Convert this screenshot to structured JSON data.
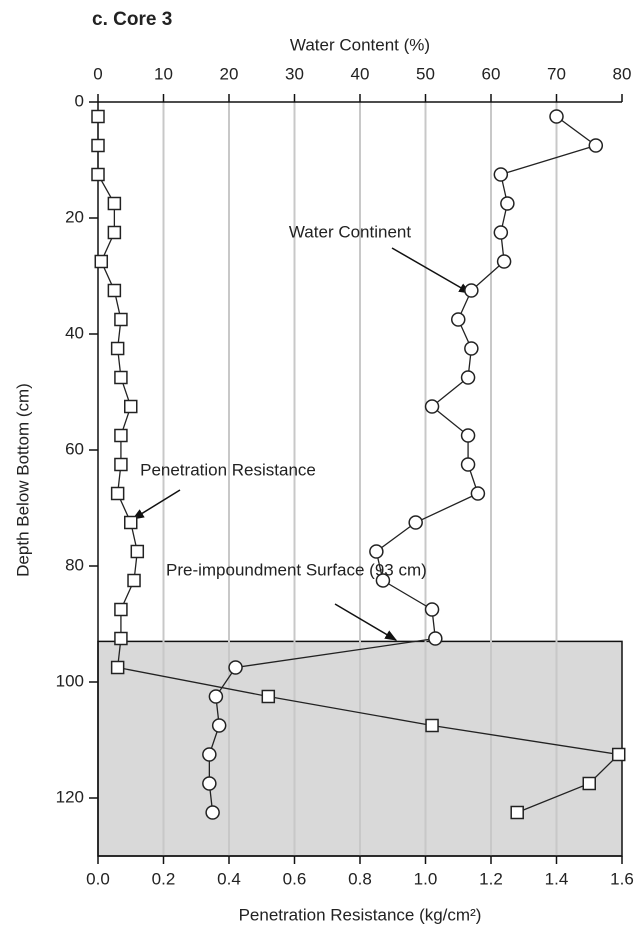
{
  "chart_data": {
    "type": "profile",
    "title": "c. Core 3",
    "x_label": "Penetration Resistance (kg/cm²)",
    "x2_label": "Water Content (%)",
    "y_label": "Depth Below Bottom (cm)",
    "xlim": [
      0,
      1.6
    ],
    "xticks": [
      {
        "value": 0,
        "label": "0.0"
      },
      0.2,
      0.4,
      0.6,
      0.8,
      {
        "value": 1,
        "label": "1.0"
      },
      1.2,
      1.4,
      1.6
    ],
    "x2lim": [
      0,
      80
    ],
    "x2ticks": [
      0,
      10,
      20,
      30,
      40,
      50,
      60,
      70,
      80
    ],
    "ylim": [
      0,
      130
    ],
    "yticks": [
      0,
      20,
      40,
      60,
      80,
      100,
      120
    ],
    "y_inverted": true,
    "grid": true,
    "grid_color": "#c8c8c8",
    "shaded_from": 93,
    "shade_color": "#d9d9d9",
    "depth": [
      2.5,
      7.5,
      12.5,
      17.5,
      22.5,
      27.5,
      32.5,
      37.5,
      42.5,
      47.5,
      52.5,
      57.5,
      62.5,
      67.5,
      72.5,
      77.5,
      82.5,
      87.5,
      92.5,
      97.5,
      102.5,
      107.5,
      112.5,
      117.5,
      122.5
    ],
    "series": [
      {
        "axis": "x2",
        "marker": "circle",
        "color": "#222222",
        "values": [
          70,
          76,
          61.5,
          62.5,
          61.5,
          62,
          57,
          55,
          57,
          56.5,
          51,
          56.5,
          56.5,
          58,
          48.5,
          42.5,
          43.5,
          51,
          51.5,
          21,
          18,
          18.5,
          17,
          17,
          17.5
        ]
      },
      {
        "axis": "x",
        "marker": "square",
        "color": "#222222",
        "values": [
          0,
          0,
          0,
          0.05,
          0.05,
          0.01,
          0.05,
          0.07,
          0.06,
          0.07,
          0.1,
          0.07,
          0.07,
          0.06,
          0.1,
          0.12,
          0.11,
          0.07,
          0.07,
          0.06,
          0.52,
          1.02,
          1.59,
          1.5,
          1.28
        ]
      }
    ],
    "annotations": [
      "Water Continent",
      "Penetration Resistance",
      "Pre-impoundment Surface (93 cm)"
    ]
  }
}
